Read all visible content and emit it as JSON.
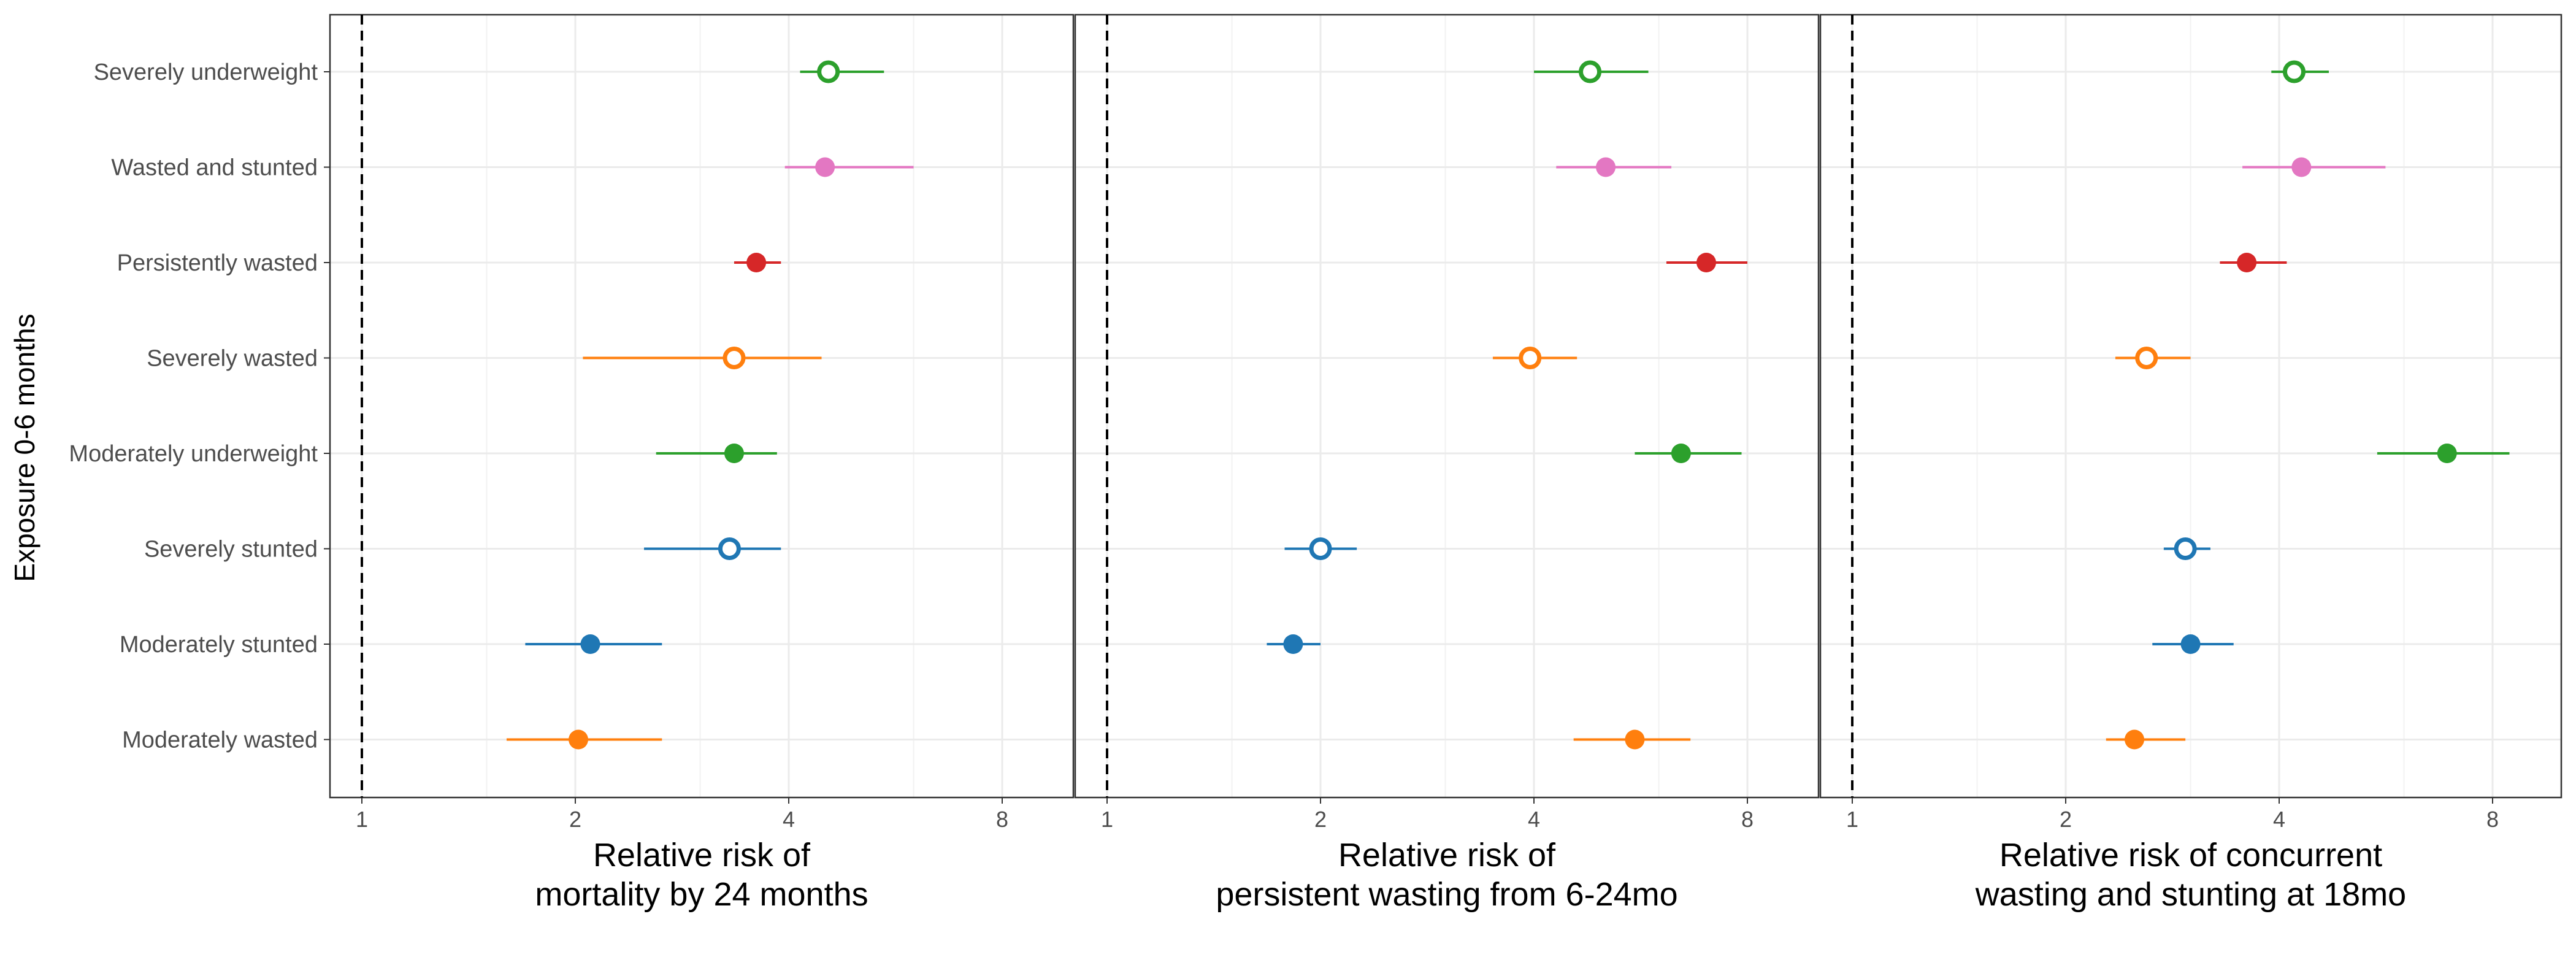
{
  "chart_data": {
    "type": "scatter",
    "subtype": "forest-plot",
    "ylabel": "Exposure 0-6 months",
    "categories": [
      "Severely underweight",
      "Wasted and stunted",
      "Persistently wasted",
      "Severely wasted",
      "Moderately underweight",
      "Severely stunted",
      "Moderately stunted",
      "Moderately wasted"
    ],
    "x_scale": "log2",
    "x_ticks": [
      1,
      2,
      4,
      8
    ],
    "x_tick_labels": [
      "1",
      "2",
      "4",
      "8"
    ],
    "xlim": [
      0.94,
      11.5
    ],
    "reference_line": 1,
    "grid": true,
    "colors": {
      "Severely underweight": "#2ca02c",
      "Wasted and stunted": "#e377c2",
      "Persistently wasted": "#d62728",
      "Severely wasted": "#ff7f0e",
      "Moderately underweight": "#2ca02c",
      "Severely stunted": "#1f77b4",
      "Moderately stunted": "#1f77b4",
      "Moderately wasted": "#ff7f0e"
    },
    "hollow": {
      "Severely underweight": true,
      "Wasted and stunted": false,
      "Persistently wasted": false,
      "Severely wasted": true,
      "Moderately underweight": false,
      "Severely stunted": true,
      "Moderately stunted": false,
      "Moderately wasted": false
    },
    "panels": [
      {
        "xlabel": [
          "Relative risk of",
          "mortality by 24 months"
        ],
        "points": [
          {
            "category": "Severely underweight",
            "estimate": 4.55,
            "lower": 4.15,
            "upper": 5.45
          },
          {
            "category": "Wasted and stunted",
            "estimate": 4.5,
            "lower": 3.95,
            "upper": 6.0
          },
          {
            "category": "Persistently wasted",
            "estimate": 3.6,
            "lower": 3.35,
            "upper": 3.9
          },
          {
            "category": "Severely wasted",
            "estimate": 3.35,
            "lower": 2.05,
            "upper": 4.45
          },
          {
            "category": "Moderately underweight",
            "estimate": 3.35,
            "lower": 2.6,
            "upper": 3.85
          },
          {
            "category": "Severely stunted",
            "estimate": 3.3,
            "lower": 2.5,
            "upper": 3.9
          },
          {
            "category": "Moderately stunted",
            "estimate": 2.1,
            "lower": 1.7,
            "upper": 2.65
          },
          {
            "category": "Moderately wasted",
            "estimate": 2.02,
            "lower": 1.6,
            "upper": 2.65
          }
        ]
      },
      {
        "xlabel": [
          "Relative risk of",
          "persistent wasting from 6-24mo"
        ],
        "points": [
          {
            "category": "Severely underweight",
            "estimate": 4.8,
            "lower": 4.0,
            "upper": 5.8
          },
          {
            "category": "Wasted and stunted",
            "estimate": 5.05,
            "lower": 4.3,
            "upper": 6.25
          },
          {
            "category": "Persistently wasted",
            "estimate": 7.0,
            "lower": 6.15,
            "upper": 8.0
          },
          {
            "category": "Severely wasted",
            "estimate": 3.95,
            "lower": 3.5,
            "upper": 4.6
          },
          {
            "category": "Moderately underweight",
            "estimate": 6.45,
            "lower": 5.55,
            "upper": 7.85
          },
          {
            "category": "Severely stunted",
            "estimate": 2.0,
            "lower": 1.78,
            "upper": 2.25
          },
          {
            "category": "Moderately stunted",
            "estimate": 1.83,
            "lower": 1.68,
            "upper": 2.0
          },
          {
            "category": "Moderately wasted",
            "estimate": 5.55,
            "lower": 4.55,
            "upper": 6.65
          }
        ]
      },
      {
        "xlabel": [
          "Relative risk of concurrent",
          "wasting and stunting at 18mo"
        ],
        "points": [
          {
            "category": "Severely underweight",
            "estimate": 4.2,
            "lower": 3.9,
            "upper": 4.7
          },
          {
            "category": "Wasted and stunted",
            "estimate": 4.3,
            "lower": 3.55,
            "upper": 5.65
          },
          {
            "category": "Persistently wasted",
            "estimate": 3.6,
            "lower": 3.3,
            "upper": 4.1
          },
          {
            "category": "Severely wasted",
            "estimate": 2.6,
            "lower": 2.35,
            "upper": 3.0
          },
          {
            "category": "Moderately underweight",
            "estimate": 6.9,
            "lower": 5.5,
            "upper": 8.45
          },
          {
            "category": "Severely stunted",
            "estimate": 2.95,
            "lower": 2.75,
            "upper": 3.2
          },
          {
            "category": "Moderately stunted",
            "estimate": 3.0,
            "lower": 2.65,
            "upper": 3.45
          },
          {
            "category": "Moderately wasted",
            "estimate": 2.5,
            "lower": 2.28,
            "upper": 2.95
          }
        ]
      }
    ]
  }
}
